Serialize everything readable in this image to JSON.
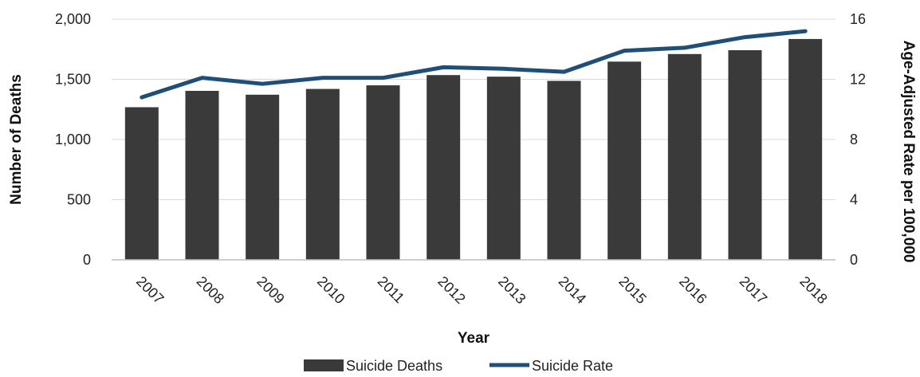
{
  "chart_data": {
    "type": "bar",
    "title": "",
    "categories": [
      "2007",
      "2008",
      "2009",
      "2010",
      "2011",
      "2012",
      "2013",
      "2014",
      "2015",
      "2016",
      "2017",
      "2018"
    ],
    "series": [
      {
        "name": "Suicide Deaths",
        "type": "bar",
        "axis": "left",
        "color": "#3a3a3a",
        "values": [
          1268,
          1404,
          1372,
          1420,
          1450,
          1535,
          1522,
          1487,
          1647,
          1710,
          1742,
          1835
        ]
      },
      {
        "name": "Suicide Rate",
        "type": "line",
        "axis": "right",
        "color": "#1f4e79",
        "values": [
          10.8,
          12.1,
          11.7,
          12.1,
          12.1,
          12.8,
          12.7,
          12.5,
          13.9,
          14.1,
          14.8,
          15.2
        ]
      }
    ],
    "xlabel": "Year",
    "ylabel": "Number of Deaths",
    "y2label": "Age-Adjusted Rate per 100,000",
    "ylim": [
      0,
      2000
    ],
    "y2lim": [
      0,
      16
    ],
    "yticks": [
      "0",
      "500",
      "1,000",
      "1,500",
      "2,000"
    ],
    "y2ticks": [
      "0",
      "4",
      "8",
      "12",
      "16"
    ],
    "grid": true,
    "legend_position": "bottom"
  }
}
